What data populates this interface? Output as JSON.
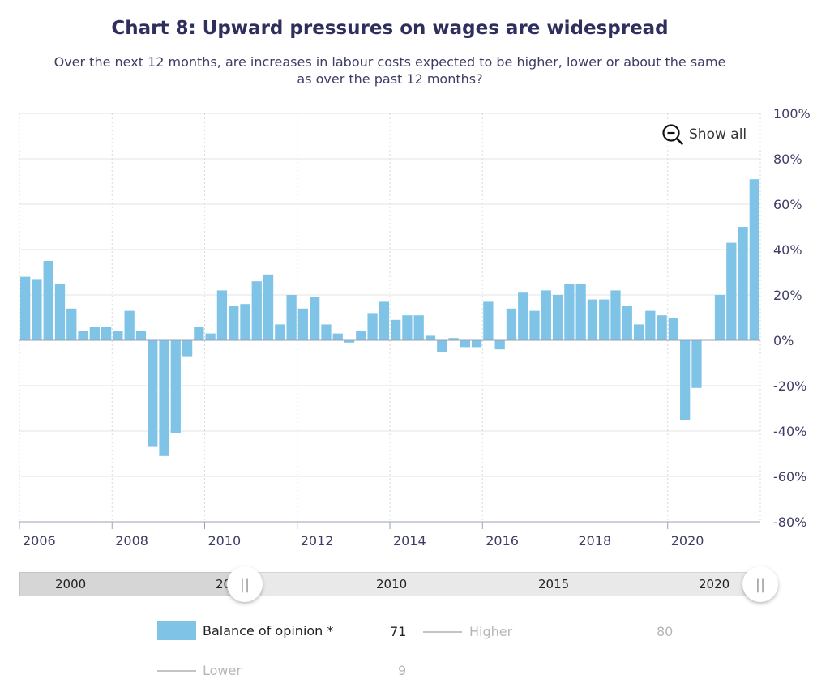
{
  "title": "Chart 8: Upward pressures on wages are widespread",
  "subtitle": "Over the next 12 months, are increases in labour costs expected to be higher, lower or about the same as over the past 12 months?",
  "show_all_label": "Show all",
  "navigator": {
    "labels": [
      "2000",
      "20",
      "2010",
      "2015",
      "2020"
    ]
  },
  "legend": [
    {
      "label": "Balance of opinion *",
      "value": "71",
      "active": true
    },
    {
      "label": "Higher",
      "value": "80",
      "active": false
    },
    {
      "label": "Lower",
      "value": "9",
      "active": false
    }
  ],
  "colors": {
    "bar": "#7fc4e6",
    "title": "#2f2f5e",
    "grid": "#e3e3e3",
    "axis_text": "#3d3d66"
  },
  "chart_data": {
    "type": "bar",
    "title": "Chart 8: Upward pressures on wages are widespread",
    "subtitle": "Over the next 12 months, are increases in labour costs expected to be higher, lower or about the same as over the past 12 months?",
    "x_tick_labels": [
      "2006",
      "2008",
      "2010",
      "2012",
      "2014",
      "2016",
      "2018",
      "2020"
    ],
    "y_tick_labels": [
      "100%",
      "80%",
      "60%",
      "40%",
      "20%",
      "0%",
      "-20%",
      "-40%",
      "-60%",
      "-80%"
    ],
    "ylim": [
      -80,
      100
    ],
    "xlim": [
      "2006-01",
      "2021-12"
    ],
    "grid": true,
    "legend_position": "bottom",
    "series": [
      {
        "name": "Balance of opinion *",
        "x": [
          "2006Q1",
          "2006Q2",
          "2006Q3",
          "2006Q4",
          "2007Q1",
          "2007Q2",
          "2007Q3",
          "2007Q4",
          "2008Q1",
          "2008Q2",
          "2008Q3",
          "2008Q4",
          "2009Q1",
          "2009Q2",
          "2009Q3",
          "2009Q4",
          "2010Q1",
          "2010Q2",
          "2010Q3",
          "2010Q4",
          "2011Q1",
          "2011Q2",
          "2011Q3",
          "2011Q4",
          "2012Q1",
          "2012Q2",
          "2012Q3",
          "2012Q4",
          "2013Q1",
          "2013Q2",
          "2013Q3",
          "2013Q4",
          "2014Q1",
          "2014Q2",
          "2014Q3",
          "2014Q4",
          "2015Q1",
          "2015Q2",
          "2015Q3",
          "2015Q4",
          "2016Q1",
          "2016Q2",
          "2016Q3",
          "2016Q4",
          "2017Q1",
          "2017Q2",
          "2017Q3",
          "2017Q4",
          "2018Q1",
          "2018Q2",
          "2018Q3",
          "2018Q4",
          "2019Q1",
          "2019Q2",
          "2019Q3",
          "2019Q4",
          "2020Q1",
          "2020Q2",
          "2020Q3",
          "2020Q4",
          "2021Q1",
          "2021Q2",
          "2021Q3",
          "2021Q4"
        ],
        "values": [
          28,
          27,
          35,
          25,
          14,
          4,
          6,
          6,
          4,
          13,
          4,
          -47,
          -51,
          -41,
          -7,
          6,
          3,
          22,
          15,
          16,
          26,
          29,
          7,
          20,
          14,
          19,
          7,
          3,
          -1,
          4,
          12,
          17,
          9,
          11,
          11,
          2,
          -5,
          1,
          -3,
          -3,
          17,
          -4,
          14,
          21,
          13,
          22,
          20,
          25,
          25,
          18,
          18,
          22,
          15,
          7,
          13,
          11,
          10,
          -35,
          -21,
          null,
          20,
          43,
          50,
          71
        ]
      }
    ]
  }
}
